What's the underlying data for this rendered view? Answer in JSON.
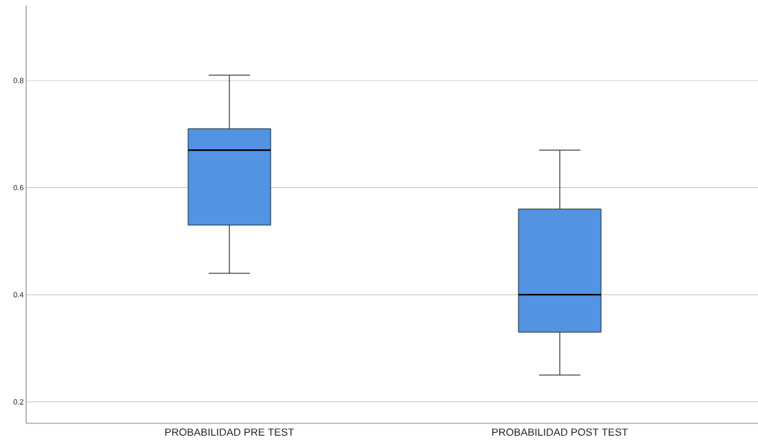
{
  "chart_data": {
    "type": "box",
    "categories": [
      "PROBABILIDAD PRE TEST",
      "PROBABILIDAD POST TEST"
    ],
    "boxes": [
      {
        "low": 0.44,
        "q1": 0.53,
        "median": 0.67,
        "q3": 0.71,
        "high": 0.81
      },
      {
        "low": 0.25,
        "q1": 0.33,
        "median": 0.4,
        "q3": 0.56,
        "high": 0.67
      }
    ],
    "color": "#5294e2",
    "ylim": [
      0.16,
      0.94
    ],
    "yticks": [
      0.2,
      0.4,
      0.6,
      0.8
    ],
    "grid": "y"
  }
}
